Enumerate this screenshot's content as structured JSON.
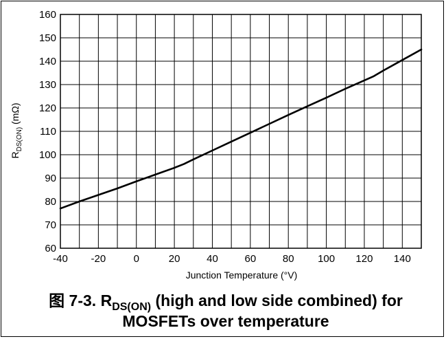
{
  "chart_data": {
    "type": "line",
    "xlabel": "Junction Temperature (°V)",
    "ylabel": {
      "main": "R",
      "sub": "DS(ON)",
      "rest": " (mΩ)"
    },
    "xlim": [
      -40,
      150
    ],
    "ylim": [
      60,
      160
    ],
    "xticks": [
      -40,
      -20,
      0,
      20,
      40,
      60,
      80,
      100,
      120,
      140
    ],
    "yticks": [
      60,
      70,
      80,
      90,
      100,
      110,
      120,
      130,
      140,
      150,
      160
    ],
    "xgrid_step": 10,
    "ygrid_step": 10,
    "grid": true,
    "line_color": "#000000",
    "series": [
      {
        "x": [
          -40,
          -30,
          -20,
          -10,
          0,
          10,
          20,
          25,
          30,
          40,
          50,
          60,
          70,
          80,
          90,
          100,
          110,
          120,
          125,
          130,
          140,
          150
        ],
        "values": [
          77,
          80,
          82.8,
          85.6,
          88.6,
          91.5,
          94.4,
          96,
          98,
          101.8,
          105.6,
          109.4,
          113.2,
          117,
          120.7,
          124.4,
          128.2,
          131.8,
          133.6,
          136,
          140.5,
          145
        ]
      }
    ]
  },
  "caption": {
    "line1_prefix": "图 7-3. R",
    "line1_sub": "DS(ON)",
    "line1_suffix": " (high and low side combined) for",
    "line2": "MOSFETs over temperature"
  }
}
